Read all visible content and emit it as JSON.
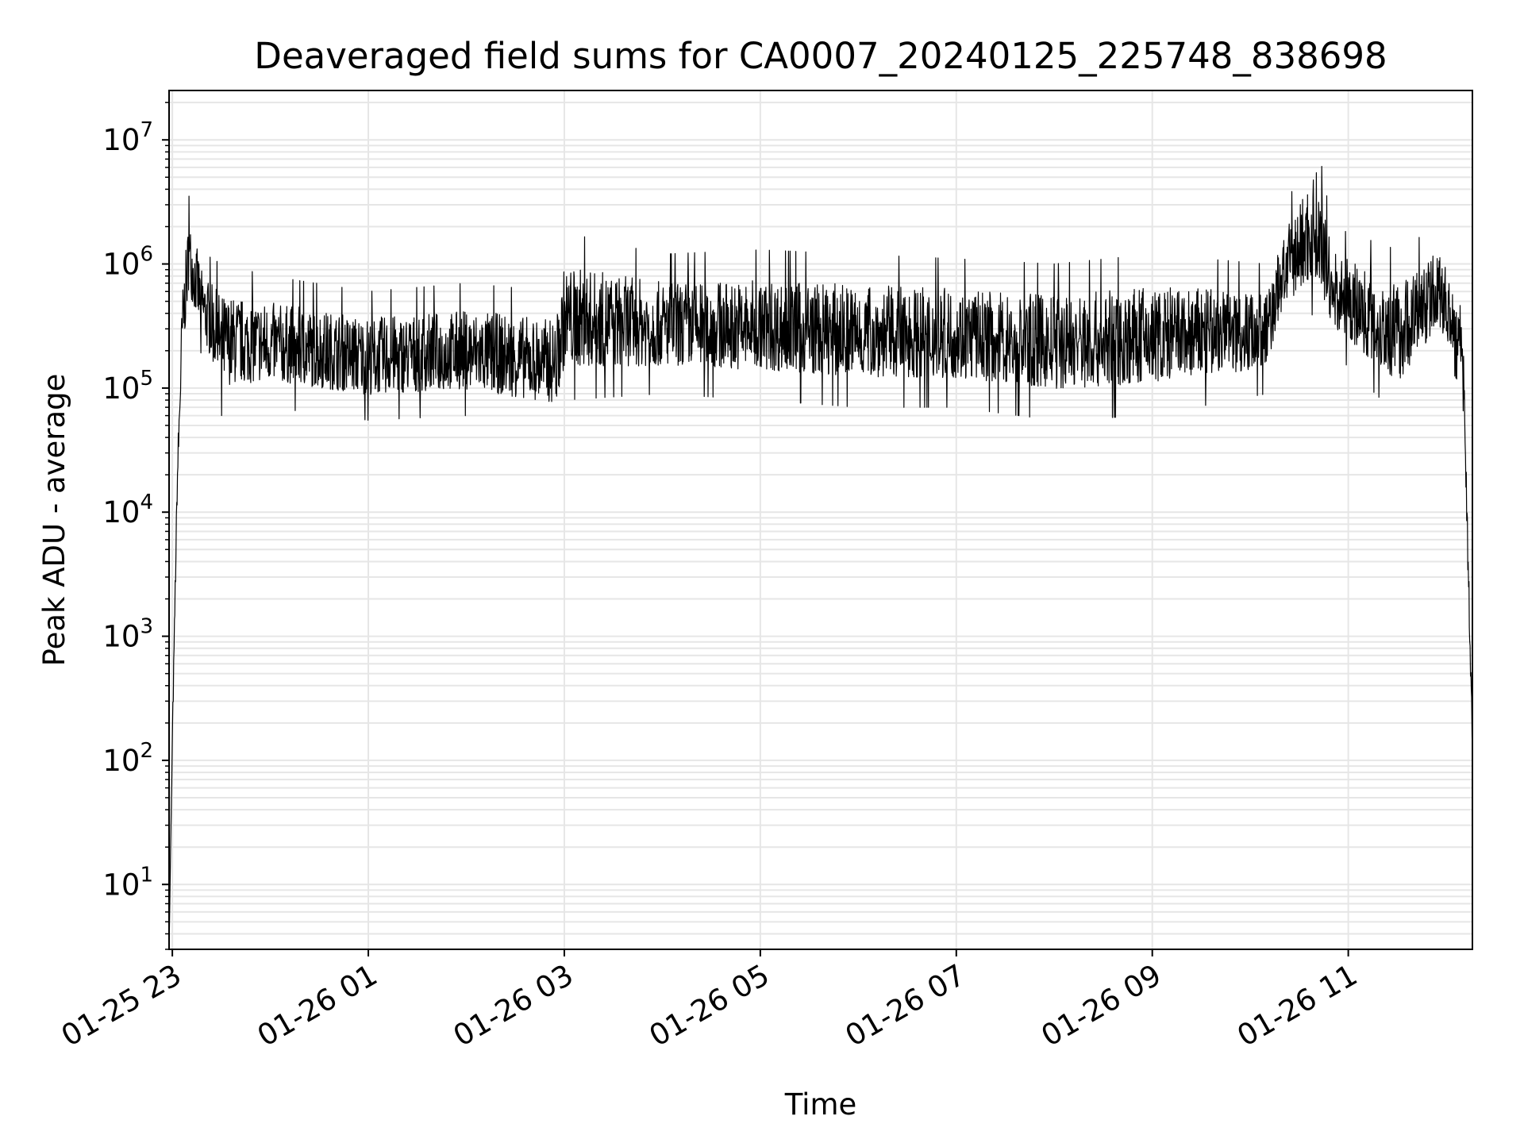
{
  "chart_data": {
    "type": "line",
    "title": "Deaveraged field sums for CA0007_20240125_225748_838698",
    "xlabel": "Time",
    "ylabel": "Peak ADU - average",
    "yscale": "log",
    "ylim": [
      3,
      25000000
    ],
    "xlim": [
      "2024-01-25 22:58",
      "2024-01-26 12:16"
    ],
    "grid": true,
    "line_color": "#000000",
    "grid_color": "#e6e6e6",
    "x_ticks": [
      {
        "t": "2024-01-25 23:00",
        "label": "01-25 23"
      },
      {
        "t": "2024-01-26 01:00",
        "label": "01-26 01"
      },
      {
        "t": "2024-01-26 03:00",
        "label": "01-26 03"
      },
      {
        "t": "2024-01-26 05:00",
        "label": "01-26 05"
      },
      {
        "t": "2024-01-26 07:00",
        "label": "01-26 07"
      },
      {
        "t": "2024-01-26 09:00",
        "label": "01-26 09"
      },
      {
        "t": "2024-01-26 11:00",
        "label": "01-26 11"
      }
    ],
    "y_ticks": [
      {
        "v": 10,
        "base": "10",
        "exp": "1"
      },
      {
        "v": 100,
        "base": "10",
        "exp": "2"
      },
      {
        "v": 1000,
        "base": "10",
        "exp": "3"
      },
      {
        "v": 10000,
        "base": "10",
        "exp": "4"
      },
      {
        "v": 100000,
        "base": "10",
        "exp": "5"
      },
      {
        "v": 1000000,
        "base": "10",
        "exp": "6"
      },
      {
        "v": 10000000,
        "base": "10",
        "exp": "7"
      }
    ],
    "envelope": [
      {
        "t": "2024-01-25 22:58",
        "lo": 3,
        "hi": 3
      },
      {
        "t": "2024-01-25 23:00",
        "lo": 100,
        "hi": 200
      },
      {
        "t": "2024-01-25 23:03",
        "lo": 10000,
        "hi": 30000
      },
      {
        "t": "2024-01-25 23:06",
        "lo": 100000,
        "hi": 900000
      },
      {
        "t": "2024-01-25 23:10",
        "lo": 400000,
        "hi": 3600000
      },
      {
        "t": "2024-01-25 23:20",
        "lo": 150000,
        "hi": 1200000
      },
      {
        "t": "2024-01-25 23:30",
        "lo": 60000,
        "hi": 1000000
      },
      {
        "t": "2024-01-26 00:00",
        "lo": 70000,
        "hi": 800000
      },
      {
        "t": "2024-01-26 01:00",
        "lo": 55000,
        "hi": 600000
      },
      {
        "t": "2024-01-26 02:00",
        "lo": 60000,
        "hi": 700000
      },
      {
        "t": "2024-01-26 02:55",
        "lo": 45000,
        "hi": 600000
      },
      {
        "t": "2024-01-26 03:00",
        "lo": 80000,
        "hi": 1800000
      },
      {
        "t": "2024-01-26 04:00",
        "lo": 90000,
        "hi": 1200000
      },
      {
        "t": "2024-01-26 05:00",
        "lo": 80000,
        "hi": 1300000
      },
      {
        "t": "2024-01-26 06:00",
        "lo": 70000,
        "hi": 1200000
      },
      {
        "t": "2024-01-26 07:00",
        "lo": 70000,
        "hi": 1100000
      },
      {
        "t": "2024-01-26 08:00",
        "lo": 55000,
        "hi": 1000000
      },
      {
        "t": "2024-01-26 09:00",
        "lo": 60000,
        "hi": 1200000
      },
      {
        "t": "2024-01-26 10:10",
        "lo": 90000,
        "hi": 1000000
      },
      {
        "t": "2024-01-26 10:20",
        "lo": 300000,
        "hi": 2500000
      },
      {
        "t": "2024-01-26 10:40",
        "lo": 400000,
        "hi": 12000000
      },
      {
        "t": "2024-01-26 10:50",
        "lo": 200000,
        "hi": 2000000
      },
      {
        "t": "2024-01-26 11:30",
        "lo": 60000,
        "hi": 1300000
      },
      {
        "t": "2024-01-26 11:55",
        "lo": 200000,
        "hi": 2000000
      },
      {
        "t": "2024-01-26 12:10",
        "lo": 100000,
        "hi": 700000
      },
      {
        "t": "2024-01-26 12:16",
        "lo": 100,
        "hi": 200
      }
    ]
  }
}
